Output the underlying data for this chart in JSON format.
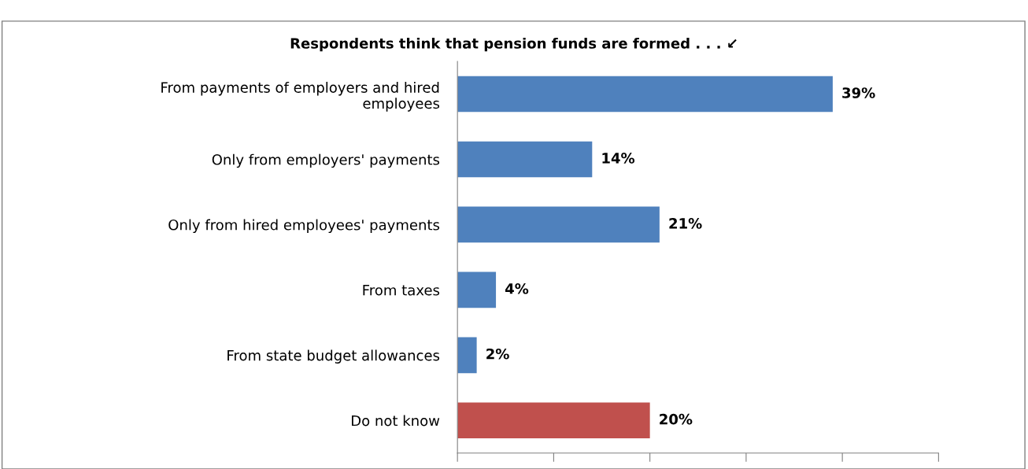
{
  "chart_data": {
    "type": "bar",
    "orientation": "horizontal",
    "title": "Respondents think that pension funds are formed . . . ↙",
    "categories": [
      "From payments of employers and hired\nemployees",
      "Only from employers' payments",
      "Only from hired employees' payments",
      "From taxes",
      "From state budget allowances",
      "Do not know"
    ],
    "values": [
      39,
      14,
      21,
      4,
      2,
      20
    ],
    "colors": [
      "#4f81bd",
      "#4f81bd",
      "#4f81bd",
      "#4f81bd",
      "#4f81bd",
      "#c0504d"
    ],
    "value_labels": [
      "39%",
      "14%",
      "21%",
      "4%",
      "2%",
      "20%"
    ],
    "xlim": [
      0,
      50
    ],
    "xticks": [
      {
        "value": 0,
        "label": null
      },
      {
        "value": 10,
        "label": null
      },
      {
        "value": 20,
        "label": null
      },
      {
        "value": 30,
        "label": null
      },
      {
        "value": 40,
        "label": null
      },
      {
        "value": 50,
        "label": null
      }
    ],
    "tick_labels": "y",
    "grid": false,
    "legend": false
  }
}
